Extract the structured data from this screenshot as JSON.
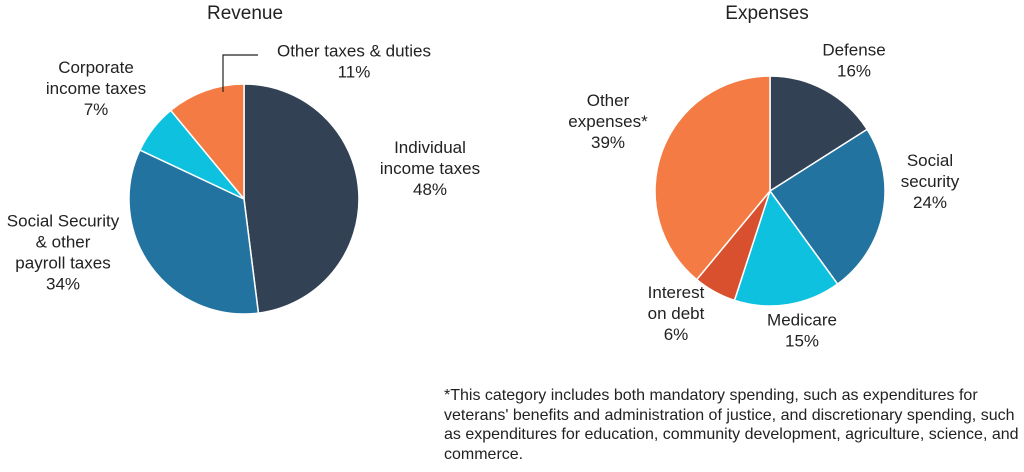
{
  "chart_data": [
    {
      "type": "pie",
      "title": "Revenue",
      "unit": "%",
      "slices": [
        {
          "label": [
            "Individual",
            "income taxes"
          ],
          "value": 48,
          "value_label": "48%",
          "color": "#334155"
        },
        {
          "label": [
            "Social Security",
            "& other",
            "payroll taxes"
          ],
          "value": 34,
          "value_label": "34%",
          "color": "#22739f"
        },
        {
          "label": [
            "Corporate",
            "income taxes"
          ],
          "value": 7,
          "value_label": "7%",
          "color": "#0ec1de"
        },
        {
          "label": [
            "Other taxes & duties"
          ],
          "value": 11,
          "value_label": "11%",
          "color": "#f47c44"
        }
      ]
    },
    {
      "type": "pie",
      "title": "Expenses",
      "unit": "%",
      "slices": [
        {
          "label": [
            "Defense"
          ],
          "value": 16,
          "value_label": "16%",
          "color": "#334155"
        },
        {
          "label": [
            "Social",
            "security"
          ],
          "value": 24,
          "value_label": "24%",
          "color": "#22739f"
        },
        {
          "label": [
            "Medicare"
          ],
          "value": 15,
          "value_label": "15%",
          "color": "#0ec1de"
        },
        {
          "label": [
            "Interest",
            "on debt"
          ],
          "value": 6,
          "value_label": "6%",
          "color": "#d9502e"
        },
        {
          "label": [
            "Other",
            "expenses*"
          ],
          "value": 39,
          "value_label": "39%",
          "color": "#f47c44"
        }
      ]
    }
  ],
  "footnote": "*This category includes both mandatory spending, such as expenditures for veterans' benefits and administration of justice, and discretionary spending, such as expenditures for education, community development, agriculture, science, and commerce."
}
